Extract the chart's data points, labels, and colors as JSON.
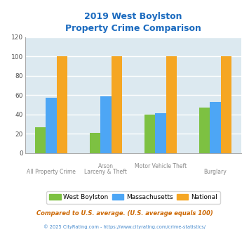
{
  "title_line1": "2019 West Boylston",
  "title_line2": "Property Crime Comparison",
  "cat_labels_top": [
    "",
    "Arson",
    "Motor Vehicle Theft",
    ""
  ],
  "cat_labels_bottom": [
    "All Property Crime",
    "Larceny & Theft",
    "",
    "Burglary"
  ],
  "west_boylston": [
    27,
    21,
    40,
    47
  ],
  "massachusetts": [
    57,
    59,
    41,
    53
  ],
  "national": [
    100,
    100,
    100,
    100
  ],
  "colors": {
    "west_boylston": "#7dc142",
    "massachusetts": "#4da6f5",
    "national": "#f5a623"
  },
  "ylim": [
    0,
    120
  ],
  "yticks": [
    0,
    20,
    40,
    60,
    80,
    100,
    120
  ],
  "title_color": "#1a6abf",
  "bg_color": "#dce9f0",
  "grid_color": "#ffffff",
  "legend_labels": [
    "West Boylston",
    "Massachusetts",
    "National"
  ],
  "footnote1": "Compared to U.S. average. (U.S. average equals 100)",
  "footnote2": "© 2025 CityRating.com - https://www.cityrating.com/crime-statistics/",
  "bar_width": 0.2
}
